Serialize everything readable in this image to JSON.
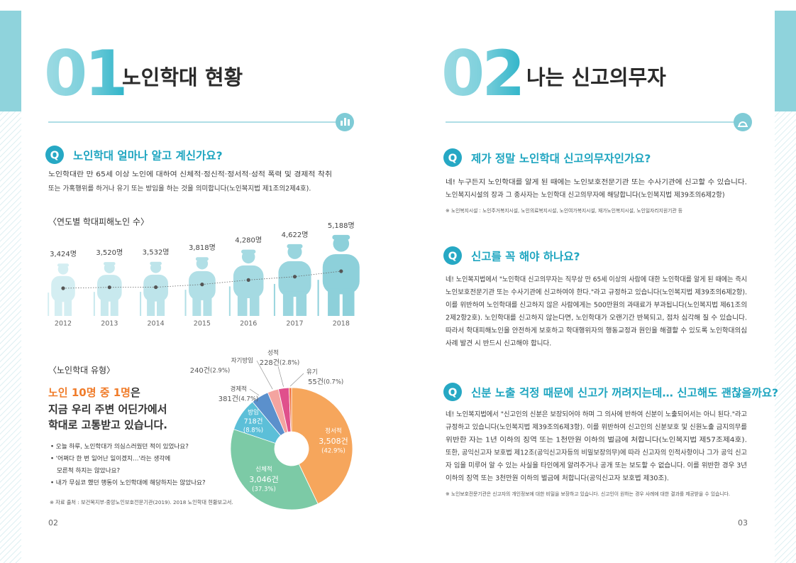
{
  "left_page": {
    "section_number": "01",
    "title": "노인학대 현황",
    "question": {
      "badge": "Q",
      "text": "노인학대 얼마나 알고 계신가요?"
    },
    "intro": [
      "노인학대란 만 65세 이상 노인에 대하여 신체적·정신적·정서적·성적 폭력 및 경제적 착취",
      "또는 가혹행위를 하거나 유기 또는 방임을 하는 것을 의미합니다(노인복지법 제1조의2제4호)."
    ],
    "highlight": {
      "emphasis": "노인 10명 중 1명",
      "rest": "은",
      "lines": [
        "지금 우리 주변 어딘가에서",
        "학대로 고통받고 있습니다."
      ]
    },
    "bullets": [
      "• 오늘 하루, 노인학대가 의심스러웠던 적이 있었나요?",
      "• '어쩌다 한 번 일어난 일이겠지…'라는 생각에",
      "모른척 하지는 않았나요?",
      "• 내가 무심코 했던 행동이 노인학대에 해당하지는 않았나요?"
    ],
    "source": "※ 자료 출처 : 보건복지부·중앙노인보호전문기관(2019). 2018 노인학대 현황보고서.",
    "page_number": "02"
  },
  "chart_data": [
    {
      "type": "line",
      "title": "〈연도별 학대피해노인 수〉",
      "categories": [
        "2012",
        "2013",
        "2014",
        "2015",
        "2016",
        "2017",
        "2018"
      ],
      "values": [
        3424,
        3520,
        3532,
        3818,
        4280,
        4622,
        5188
      ],
      "value_labels": [
        "3,424명",
        "3,520명",
        "3,532명",
        "3,818명",
        "4,280명",
        "4,622명",
        "5,188명"
      ],
      "colors": [
        "#d4eef2",
        "#c8e9ee",
        "#bde4ea",
        "#b1dfe6",
        "#a5dae2",
        "#99d5de",
        "#8dd0da"
      ]
    },
    {
      "type": "pie",
      "title": "〈노인학대 유형〉",
      "categories": [
        "정서적",
        "신체적",
        "방임",
        "경제적",
        "자기방임",
        "성적",
        "유기"
      ],
      "values": [
        3508,
        3046,
        718,
        381,
        240,
        228,
        55
      ],
      "value_labels": [
        "3,508건",
        "3,046건",
        "718건",
        "381건",
        "240건",
        "228건",
        "55건"
      ],
      "shares": [
        42.9,
        37.3,
        8.8,
        4.7,
        2.9,
        2.8,
        0.7
      ],
      "share_labels": [
        "(42.9%)",
        "(37.3%)",
        "(8.8%)",
        "(4.7%)",
        "(2.9%)",
        "(2.8%)",
        "(0.7%)"
      ],
      "colors": [
        "#f6a65c",
        "#7ccaa6",
        "#5cbfd8",
        "#5b90cc",
        "#f4a4a0",
        "#e0508c",
        "#f07442"
      ]
    }
  ],
  "right_page": {
    "section_number": "02",
    "title": "나는 신고의무자",
    "questions": [
      {
        "badge": "Q",
        "text": "제가 정말 노인학대 신고의무자인가요?",
        "paragraph": [
          "네! 누구든지 노인학대를 알게 된 때에는 노인보호전문기관 또는 수사기관에 신고할 수 있습니다.",
          "노인복지시설의 장과 그 종사자는 노인학대 신고의무자에 해당합니다(노인복지법 제39조의6제2항)"
        ],
        "note": "※ 노인복지시설 : 노인주거복지시설, 노인의료복지시설, 노인여가복지시설, 재가노인복지시설, 노인일자리지원기관 등"
      },
      {
        "badge": "Q",
        "text": "신고를 꼭 해야 하나요?",
        "paragraph": [
          "네! 노인복지법에서 \"노인학대 신고의무자는 직무상 만 65세 이상의 사람에 대한 노인학대를 알게 된 때에는 즉시",
          "노인보호전문기관 또는 수사기관에 신고하여야 한다.\"라고 규정하고 있습니다(노인복지법 제39조의6제2항).",
          "이를 위반하여 노인학대를 신고하지 않은 사람에게는 500만원의 과태료가 부과됩니다(노인복지법 제61조의",
          "2제2항2호). 노인학대를 신고하지 않는다면, 노인학대가 오랜기간 반복되고, 점차 심각해 질 수 있습니다.",
          "따라서 학대피해노인을 안전하게 보호하고 학대행위자의 행동교정과 원인을 해결할 수 있도록 노인학대의심",
          "사례 발견 시 반드시 신고해야 합니다."
        ]
      },
      {
        "badge": "Q",
        "text": "신분 노출 걱정 때문에 신고가 꺼려지는데… 신고해도 괜찮을까요?",
        "paragraph": [
          "네! 노인복지법에서 \"신고인의 신분은 보장되어야 하며 그 의사에 반하여 신분이 노출되어서는 아니 된다.\"라고",
          "규정하고 있습니다(노인복지법 제39조의6제3항). 이를 위반하여 신고인의 신분보호 및 신원노출 금지의무를",
          "위반한 자는 1년 이하의 징역 또는 1천만원 이하의 벌금에 처합니다(노인복지법 제57조제4호).",
          "또한, 공익신고자 보호법 제12조(공익신고자등의 비밀보장의무)에 따라 신고자의 인적사항이나 그가 공익 신고",
          "자 임을 미루어 알 수 있는 사실을 타인에게 알려주거나 공개 또는 보도할 수 없습니다. 이를 위반한 경우 3년",
          "이하의 징역 또는 3천만원 이하의 벌금에 처합니다(공익신고자 보호법 제30조)."
        ],
        "note": "※ 노인보호전문기관은 신고자의 개인정보에 대한 비밀을 보장하고 있습니다. 신고인이 원하는 경우 사례에 대한 결과를 제공받을 수 있습니다."
      }
    ],
    "page_number": "03"
  }
}
